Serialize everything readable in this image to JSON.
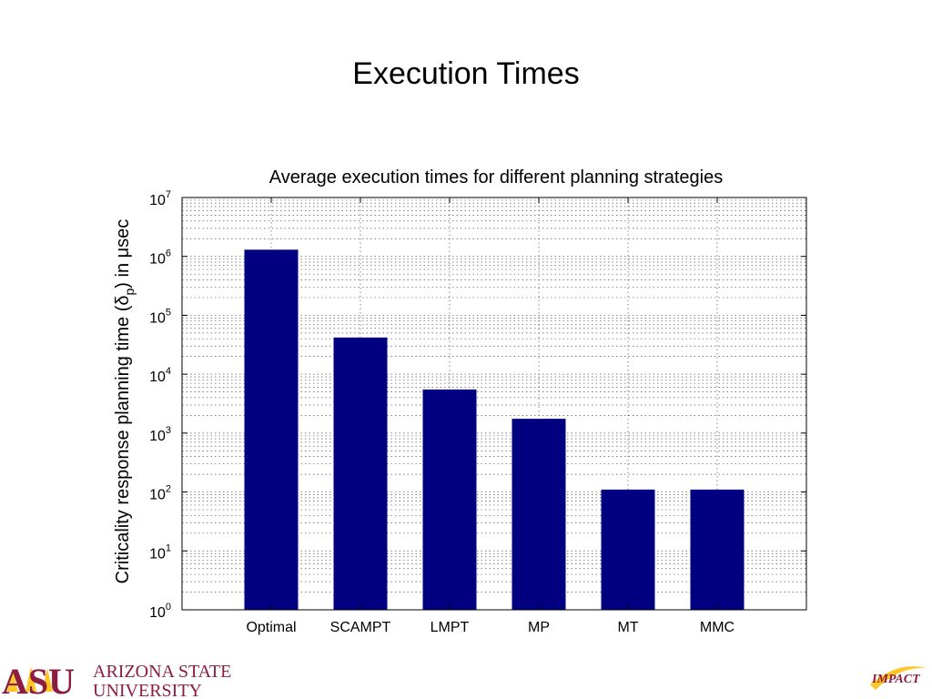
{
  "slide": {
    "title": "Execution Times"
  },
  "chart_data": {
    "type": "bar",
    "title": "Average execution times for different planning strategies",
    "ylabel_parts": [
      "Criticality response planning time (",
      "δ",
      "p",
      ") in μsec"
    ],
    "xlabel": "",
    "categories": [
      "Optimal",
      "SCAMPT",
      "LMPT",
      "MP",
      "MT",
      "MMC"
    ],
    "values": [
      1300000,
      42000,
      5500,
      1750,
      110,
      110
    ],
    "yscale": "log",
    "ylim": [
      1,
      10000000
    ],
    "yticks": [
      {
        "base": "10",
        "exp": "0"
      },
      {
        "base": "10",
        "exp": "1"
      },
      {
        "base": "10",
        "exp": "2"
      },
      {
        "base": "10",
        "exp": "3"
      },
      {
        "base": "10",
        "exp": "4"
      },
      {
        "base": "10",
        "exp": "5"
      },
      {
        "base": "10",
        "exp": "6"
      },
      {
        "base": "10",
        "exp": "7"
      }
    ],
    "grid": true,
    "bar_color": "#000080"
  },
  "logos": {
    "asu": {
      "text_line1": "ARIZONA STATE",
      "text_line2": "UNIVERSITY",
      "mark": "ASU",
      "color": "#8C1D40",
      "accent": "#FFC627"
    },
    "impact": {
      "text": "IMPACT",
      "color": "#8C1D40",
      "accent": "#FFC627"
    }
  }
}
